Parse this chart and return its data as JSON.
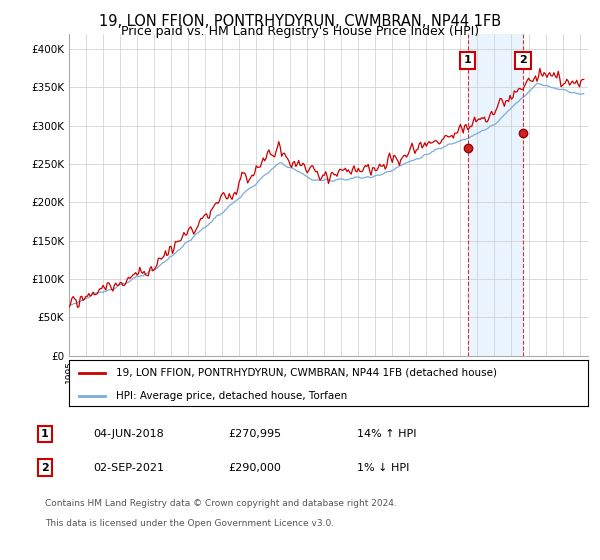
{
  "title": "19, LON FFION, PONTRHYDYRUN, CWMBRAN, NP44 1FB",
  "subtitle": "Price paid vs. HM Land Registry's House Price Index (HPI)",
  "title_fontsize": 10.5,
  "subtitle_fontsize": 9,
  "ylim": [
    0,
    420000
  ],
  "yticks": [
    0,
    50000,
    100000,
    150000,
    200000,
    250000,
    300000,
    350000,
    400000
  ],
  "ytick_labels": [
    "£0",
    "£50K",
    "£100K",
    "£150K",
    "£200K",
    "£250K",
    "£300K",
    "£350K",
    "£400K"
  ],
  "hpi_color": "#7aaddb",
  "price_color": "#cc0000",
  "background_color": "#ffffff",
  "grid_color": "#cccccc",
  "sale1_date": "2018-06-04",
  "sale1_price": 270995,
  "sale2_date": "2021-09-02",
  "sale2_price": 290000,
  "legend_line1": "19, LON FFION, PONTRHYDYRUN, CWMBRAN, NP44 1FB (detached house)",
  "legend_line2": "HPI: Average price, detached house, Torfaen",
  "row1_date": "04-JUN-2018",
  "row1_price": "£270,995",
  "row1_hpi": "14% ↑ HPI",
  "row2_date": "02-SEP-2021",
  "row2_price": "£290,000",
  "row2_hpi": "1% ↓ HPI",
  "footer1": "Contains HM Land Registry data © Crown copyright and database right 2024.",
  "footer2": "This data is licensed under the Open Government Licence v3.0."
}
